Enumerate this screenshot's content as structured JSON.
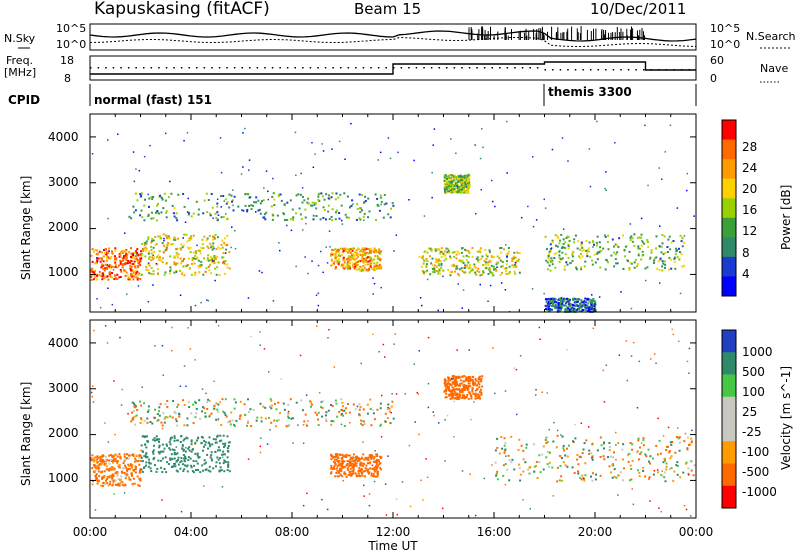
{
  "header": {
    "title": "Kapuskasing (fitACF)",
    "beam": "Beam 15",
    "date": "10/Dec/2011"
  },
  "strip_labels": {
    "nsky": "N.Sky",
    "freq": "Freq.",
    "freq_unit": "[MHz]",
    "cpid": "CPID",
    "nsearch": "N.Search",
    "nave": "Nave",
    "nsky_tick_hi": "10^5",
    "nsky_tick_lo": "10^0",
    "freq_tick_hi": "18",
    "freq_tick_lo": "8",
    "nave_tick_hi": "60",
    "nave_tick_lo": "0"
  },
  "cpid_modes": [
    {
      "label": "normal (fast) 151",
      "start_ut": 0
    },
    {
      "label": "themis 3300",
      "start_ut": 18.0
    }
  ],
  "x_axis": {
    "label": "Time UT",
    "ticks": [
      "00:00",
      "04:00",
      "08:00",
      "12:00",
      "16:00",
      "20:00",
      "00:00"
    ],
    "range_hours": [
      0,
      24
    ]
  },
  "panels": [
    {
      "id": "power",
      "ylabel": "Slant Range [km]",
      "yticks": [
        "1000",
        "2000",
        "3000",
        "4000"
      ],
      "colorbar_label": "Power [dB]",
      "colorbar_ticks": [
        "28",
        "24",
        "20",
        "16",
        "12",
        "8",
        "4"
      ],
      "colors": [
        "#ff0000",
        "#ff6a00",
        "#ff9a00",
        "#ffd000",
        "#9ad000",
        "#3aa03a",
        "#2f8a6a",
        "#1a3ad0",
        "#0000ff"
      ]
    },
    {
      "id": "velocity",
      "ylabel": "Slant Range [km]",
      "yticks": [
        "1000",
        "2000",
        "3000",
        "4000"
      ],
      "colorbar_label": "Velocity [m s^-1]",
      "colorbar_ticks": [
        "1000",
        "500",
        "100",
        "25",
        "-25",
        "-100",
        "-500",
        "-1000"
      ],
      "colors": [
        "#2040c0",
        "#2f8a6a",
        "#46c846",
        "#c8c8c0",
        "#c8c8c0",
        "#ff9a00",
        "#ff6a00",
        "#ff0000"
      ]
    }
  ],
  "chart_data": [
    {
      "type": "heatmap",
      "title": "Kapuskasing (fitACF)",
      "subtitle": "Beam 15",
      "xlabel": "Time UT",
      "ylabel": "Slant Range [km]",
      "xlim": [
        0,
        24
      ],
      "ylim": [
        180,
        4500
      ],
      "colorbar": {
        "label": "Power [dB]",
        "range": [
          0,
          30
        ]
      },
      "scatter_regions": [
        {
          "x": [
            0.0,
            2.0
          ],
          "y": [
            900,
            1600
          ],
          "value": 26
        },
        {
          "x": [
            2.0,
            5.5
          ],
          "y": [
            1000,
            1900
          ],
          "value": 18
        },
        {
          "x": [
            1.5,
            12.0
          ],
          "y": [
            2200,
            2800
          ],
          "value": 10
        },
        {
          "x": [
            9.5,
            11.5
          ],
          "y": [
            1100,
            1600
          ],
          "value": 22
        },
        {
          "x": [
            13.0,
            17.0
          ],
          "y": [
            1000,
            1600
          ],
          "value": 16
        },
        {
          "x": [
            14.0,
            15.0
          ],
          "y": [
            2800,
            3200
          ],
          "value": 14
        },
        {
          "x": [
            18.0,
            23.5
          ],
          "y": [
            1100,
            1900
          ],
          "value": 12
        },
        {
          "x": [
            18.0,
            20.0
          ],
          "y": [
            200,
            500
          ],
          "value": 6
        }
      ]
    },
    {
      "type": "heatmap",
      "title": "Kapuskasing (fitACF)",
      "subtitle": "Beam 15",
      "xlabel": "Time UT",
      "ylabel": "Slant Range [km]",
      "xlim": [
        0,
        24
      ],
      "ylim": [
        180,
        4500
      ],
      "colorbar": {
        "label": "Velocity [m s^-1]",
        "range": [
          -1000,
          1000
        ]
      },
      "scatter_regions": [
        {
          "x": [
            0.0,
            2.0
          ],
          "y": [
            900,
            1600
          ],
          "value": -200
        },
        {
          "x": [
            2.0,
            5.5
          ],
          "y": [
            1200,
            2000
          ],
          "value": 300
        },
        {
          "x": [
            1.5,
            12.0
          ],
          "y": [
            2200,
            2800
          ],
          "value": 0
        },
        {
          "x": [
            9.5,
            11.5
          ],
          "y": [
            1100,
            1600
          ],
          "value": -300
        },
        {
          "x": [
            14.0,
            15.5
          ],
          "y": [
            2800,
            3300
          ],
          "value": -300
        },
        {
          "x": [
            16.0,
            24.0
          ],
          "y": [
            1000,
            2000
          ],
          "value": 0
        }
      ]
    }
  ]
}
